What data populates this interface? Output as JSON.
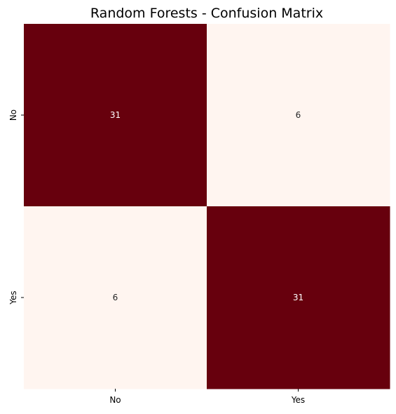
{
  "chart_data": {
    "type": "heatmap",
    "title": "Random Forests - Confusion Matrix",
    "xlabel": "",
    "ylabel": "",
    "x_categories": [
      "No",
      "Yes"
    ],
    "y_categories": [
      "No",
      "Yes"
    ],
    "values": [
      [
        31,
        6
      ],
      [
        6,
        31
      ]
    ],
    "colormap": {
      "low": "#fff5f0",
      "high": "#67000d"
    },
    "annotation_colors": {
      "on_dark": "#ffffff",
      "on_light": "#262626"
    },
    "colorbar": false
  }
}
